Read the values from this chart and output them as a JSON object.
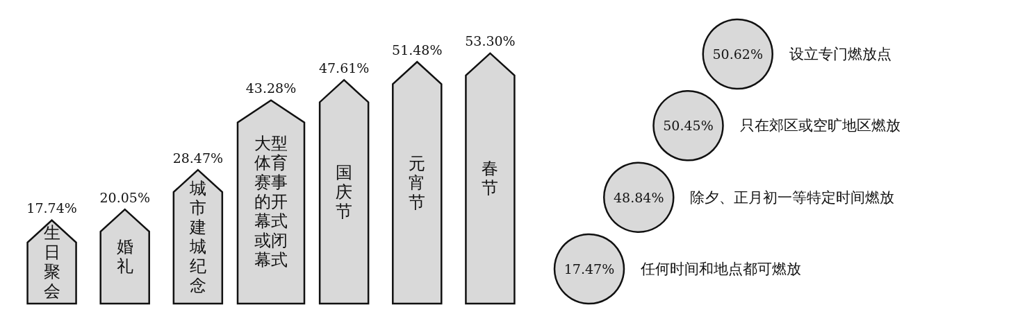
{
  "chart_data": [
    {
      "type": "bar",
      "categories": [
        "生日聚会",
        "婚礼",
        "城市建城纪念",
        "大型体育赛事的开幕式或闭幕式",
        "国庆节",
        "元宵节",
        "春节"
      ],
      "values": [
        17.74,
        20.05,
        28.47,
        43.28,
        47.61,
        51.48,
        53.3
      ],
      "value_labels": [
        "17.74%",
        "20.05%",
        "28.47%",
        "43.28%",
        "47.61%",
        "51.48%",
        "53.30%"
      ],
      "color": "#d9d9d9"
    },
    {
      "type": "other",
      "categories": [
        "设立专门燃放点",
        "只在郊区或空旷地区燃放",
        "除夕、正月初一等特定时间燃放",
        "任何时间和地点都可燃放"
      ],
      "values": [
        50.62,
        50.45,
        48.84,
        17.47
      ],
      "value_labels": [
        "50.62%",
        "50.45%",
        "48.84%",
        "17.47%"
      ],
      "color": "#d9d9d9"
    }
  ]
}
